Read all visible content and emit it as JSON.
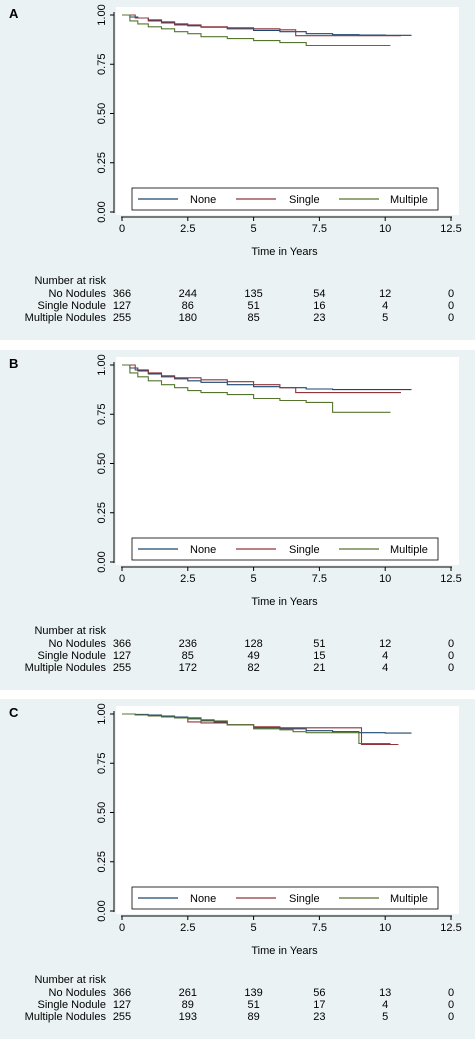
{
  "colors": {
    "panel_bg": "#eaf2f3",
    "none": "#1a476f",
    "single": "#90353b",
    "multiple": "#55752f"
  },
  "chart_data": [
    {
      "type": "line",
      "panel_label": "A",
      "xlabel": "Time in Years",
      "ylabel": "",
      "xlim": [
        0,
        12.5
      ],
      "ylim": [
        0,
        1
      ],
      "xticks": [
        "0",
        "2.5",
        "5",
        "7.5",
        "10",
        "12.5"
      ],
      "yticks": [
        "0.00",
        "0.25",
        "0.50",
        "0.75",
        "1.00"
      ],
      "grid": false,
      "legend_position": "bottom-inside",
      "series": [
        {
          "name": "None",
          "x": [
            0,
            0.3,
            0.6,
            1.0,
            1.5,
            2.0,
            2.5,
            3.0,
            4.0,
            5.0,
            6.0,
            7.0,
            8.0,
            9.0,
            10.0,
            11.0
          ],
          "y": [
            1.0,
            0.99,
            0.985,
            0.975,
            0.965,
            0.955,
            0.945,
            0.938,
            0.93,
            0.922,
            0.915,
            0.905,
            0.9,
            0.898,
            0.897,
            0.897
          ]
        },
        {
          "name": "Single",
          "x": [
            0,
            0.5,
            1.0,
            1.5,
            2.0,
            3.0,
            4.0,
            5.0,
            6.0,
            6.6,
            7.0,
            8.0,
            9.0,
            10.0,
            10.6
          ],
          "y": [
            1.0,
            0.985,
            0.97,
            0.96,
            0.95,
            0.94,
            0.935,
            0.93,
            0.925,
            0.895,
            0.895,
            0.895,
            0.895,
            0.895,
            0.895
          ]
        },
        {
          "name": "Multiple",
          "x": [
            0,
            0.3,
            0.6,
            1.0,
            1.5,
            2.0,
            2.5,
            3.0,
            4.0,
            5.0,
            6.0,
            7.0,
            8.0,
            9.0,
            10.0,
            10.2
          ],
          "y": [
            1.0,
            0.97,
            0.955,
            0.94,
            0.93,
            0.915,
            0.905,
            0.89,
            0.88,
            0.87,
            0.86,
            0.845,
            0.845,
            0.845,
            0.845,
            0.845
          ]
        }
      ],
      "risk_table": {
        "title": "Number at risk",
        "rows": [
          {
            "label": "No Nodules",
            "values": [
              "366",
              "244",
              "135",
              "54",
              "12",
              "0"
            ]
          },
          {
            "label": "Single Nodule",
            "values": [
              "127",
              "86",
              "51",
              "16",
              "4",
              "0"
            ]
          },
          {
            "label": "Multiple Nodules",
            "values": [
              "255",
              "180",
              "85",
              "23",
              "5",
              "0"
            ]
          }
        ]
      }
    },
    {
      "type": "line",
      "panel_label": "B",
      "xlabel": "Time in Years",
      "ylabel": "",
      "xlim": [
        0,
        12.5
      ],
      "ylim": [
        0,
        1
      ],
      "xticks": [
        "0",
        "2.5",
        "5",
        "7.5",
        "10",
        "12.5"
      ],
      "yticks": [
        "0.00",
        "0.25",
        "0.50",
        "0.75",
        "1.00"
      ],
      "grid": false,
      "legend_position": "bottom-inside",
      "series": [
        {
          "name": "None",
          "x": [
            0,
            0.3,
            0.6,
            1.0,
            1.5,
            2.0,
            2.5,
            3.0,
            4.0,
            5.0,
            6.0,
            7.0,
            8.0,
            9.0,
            10.0,
            11.0
          ],
          "y": [
            1.0,
            0.985,
            0.97,
            0.955,
            0.94,
            0.93,
            0.92,
            0.912,
            0.9,
            0.89,
            0.885,
            0.878,
            0.875,
            0.875,
            0.875,
            0.875
          ]
        },
        {
          "name": "Single",
          "x": [
            0,
            0.5,
            1.0,
            1.5,
            2.0,
            3.0,
            4.0,
            5.0,
            6.0,
            6.6,
            7.0,
            8.0,
            9.0,
            10.0,
            10.6
          ],
          "y": [
            1.0,
            0.975,
            0.96,
            0.945,
            0.935,
            0.925,
            0.915,
            0.9,
            0.885,
            0.86,
            0.86,
            0.86,
            0.86,
            0.86,
            0.86
          ]
        },
        {
          "name": "Multiple",
          "x": [
            0,
            0.3,
            0.6,
            1.0,
            1.5,
            2.0,
            2.5,
            3.0,
            4.0,
            5.0,
            6.0,
            7.0,
            7.8,
            8.0,
            9.0,
            10.0,
            10.2
          ],
          "y": [
            1.0,
            0.96,
            0.94,
            0.92,
            0.9,
            0.885,
            0.87,
            0.86,
            0.85,
            0.83,
            0.82,
            0.81,
            0.81,
            0.76,
            0.76,
            0.76,
            0.76
          ]
        }
      ],
      "risk_table": {
        "title": "Number at risk",
        "rows": [
          {
            "label": "No Nodules",
            "values": [
              "366",
              "236",
              "128",
              "51",
              "12",
              "0"
            ]
          },
          {
            "label": "Single Nodule",
            "values": [
              "127",
              "85",
              "49",
              "15",
              "4",
              "0"
            ]
          },
          {
            "label": "Multiple Nodules",
            "values": [
              "255",
              "172",
              "82",
              "21",
              "4",
              "0"
            ]
          }
        ]
      }
    },
    {
      "type": "line",
      "panel_label": "C",
      "xlabel": "Time in Years",
      "ylabel": "",
      "xlim": [
        0,
        12.5
      ],
      "ylim": [
        0,
        1
      ],
      "xticks": [
        "0",
        "2.5",
        "5",
        "7.5",
        "10",
        "12.5"
      ],
      "yticks": [
        "0.00",
        "0.25",
        "0.50",
        "0.75",
        "1.00"
      ],
      "grid": false,
      "legend_position": "bottom-inside",
      "series": [
        {
          "name": "None",
          "x": [
            0,
            0.5,
            1.0,
            1.5,
            2.0,
            2.5,
            3.0,
            3.5,
            4.0,
            5.0,
            6.0,
            7.0,
            8.0,
            9.0,
            10.0,
            11.0
          ],
          "y": [
            1.0,
            0.998,
            0.995,
            0.99,
            0.985,
            0.98,
            0.97,
            0.96,
            0.945,
            0.93,
            0.925,
            0.915,
            0.91,
            0.905,
            0.903,
            0.903
          ]
        },
        {
          "name": "Single",
          "x": [
            0,
            0.5,
            1.0,
            1.5,
            2.0,
            2.5,
            3.0,
            4.0,
            5.0,
            6.0,
            7.0,
            8.0,
            9.0,
            9.1,
            10.0,
            10.5
          ],
          "y": [
            1.0,
            0.995,
            0.99,
            0.985,
            0.98,
            0.96,
            0.955,
            0.945,
            0.935,
            0.93,
            0.93,
            0.93,
            0.93,
            0.845,
            0.845,
            0.845
          ]
        },
        {
          "name": "Multiple",
          "x": [
            0,
            0.5,
            1.0,
            1.5,
            2.0,
            2.5,
            3.0,
            4.0,
            5.0,
            6.0,
            6.5,
            7.0,
            8.0,
            8.9,
            9.0,
            10.0,
            10.2
          ],
          "y": [
            1.0,
            0.995,
            0.99,
            0.985,
            0.98,
            0.975,
            0.965,
            0.945,
            0.925,
            0.92,
            0.91,
            0.905,
            0.905,
            0.905,
            0.85,
            0.85,
            0.85
          ]
        }
      ],
      "risk_table": {
        "title": "Number at risk",
        "rows": [
          {
            "label": "No Nodules",
            "values": [
              "366",
              "261",
              "139",
              "56",
              "13",
              "0"
            ]
          },
          {
            "label": "Single Nodule",
            "values": [
              "127",
              "89",
              "51",
              "17",
              "4",
              "0"
            ]
          },
          {
            "label": "Multiple Nodules",
            "values": [
              "255",
              "193",
              "89",
              "23",
              "5",
              "0"
            ]
          }
        ]
      }
    }
  ]
}
